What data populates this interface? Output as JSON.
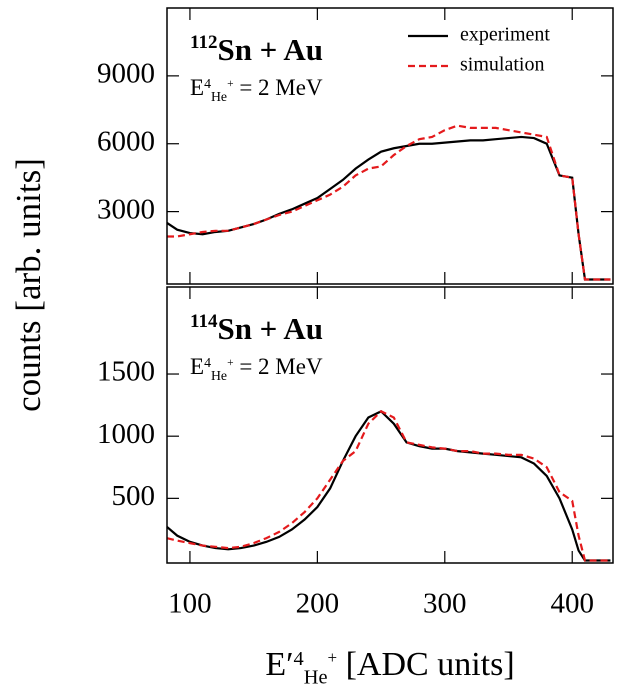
{
  "chart_data": [
    {
      "type": "line",
      "ylabel": "counts [arb. units]",
      "annotation": {
        "mass": "112",
        "text": "Sn + Au"
      },
      "energy_label": [
        "E",
        "4",
        "He",
        "+",
        " = 2 MeV"
      ],
      "legend": "upper right",
      "x": [
        82,
        90,
        100,
        110,
        120,
        130,
        140,
        150,
        160,
        170,
        180,
        190,
        200,
        210,
        220,
        230,
        240,
        250,
        260,
        270,
        280,
        290,
        300,
        310,
        320,
        330,
        340,
        350,
        360,
        370,
        380,
        390,
        400,
        405,
        410,
        420,
        430
      ],
      "xlim": [
        82,
        432
      ],
      "ylim": [
        -200,
        12000
      ],
      "yticks": [
        3000,
        6000,
        9000
      ],
      "series": [
        {
          "name": "experiment",
          "color": "#000000",
          "dash": "solid",
          "values": [
            2500,
            2200,
            2050,
            2000,
            2100,
            2150,
            2300,
            2450,
            2650,
            2900,
            3100,
            3350,
            3600,
            4000,
            4400,
            4900,
            5300,
            5650,
            5800,
            5900,
            6000,
            6000,
            6050,
            6100,
            6150,
            6150,
            6200,
            6250,
            6300,
            6250,
            6000,
            4600,
            4500,
            2000,
            0,
            0,
            0
          ]
        },
        {
          "name": "simulation",
          "color": "#e41a1c",
          "dash": "dashed",
          "values": [
            1900,
            1900,
            2000,
            2100,
            2150,
            2150,
            2300,
            2450,
            2650,
            2850,
            3000,
            3250,
            3500,
            3750,
            4100,
            4600,
            4900,
            5000,
            5500,
            5900,
            6200,
            6300,
            6600,
            6800,
            6700,
            6700,
            6700,
            6600,
            6500,
            6400,
            6300,
            4600,
            4500,
            2000,
            0,
            0,
            0
          ]
        }
      ]
    },
    {
      "type": "line",
      "annotation": {
        "mass": "114",
        "text": "Sn + Au"
      },
      "energy_label": [
        "E",
        "4",
        "He",
        "+",
        " = 2 MeV"
      ],
      "xlabel": [
        "E′",
        "4",
        "He",
        "+",
        " [ADC units]"
      ],
      "x": [
        82,
        90,
        100,
        110,
        120,
        130,
        140,
        150,
        160,
        170,
        180,
        190,
        200,
        210,
        220,
        230,
        240,
        250,
        260,
        270,
        280,
        290,
        300,
        310,
        320,
        330,
        340,
        350,
        360,
        370,
        380,
        390,
        400,
        405,
        410,
        420,
        430
      ],
      "xlim": [
        82,
        432
      ],
      "xticks": [
        100,
        200,
        300,
        400
      ],
      "ylim": [
        -20,
        2200
      ],
      "yticks": [
        500,
        1000,
        1500
      ],
      "series": [
        {
          "name": "experiment",
          "color": "#000000",
          "dash": "solid",
          "values": [
            270,
            200,
            150,
            120,
            100,
            90,
            100,
            120,
            150,
            190,
            250,
            330,
            430,
            580,
            800,
            1000,
            1150,
            1200,
            1100,
            950,
            920,
            900,
            900,
            880,
            870,
            860,
            850,
            840,
            830,
            780,
            680,
            500,
            250,
            80,
            0,
            0,
            0
          ]
        },
        {
          "name": "simulation",
          "color": "#e41a1c",
          "dash": "dashed",
          "values": [
            180,
            160,
            140,
            120,
            110,
            100,
            110,
            140,
            180,
            230,
            300,
            390,
            500,
            650,
            800,
            880,
            1100,
            1200,
            1150,
            950,
            930,
            910,
            900,
            880,
            880,
            860,
            860,
            850,
            850,
            820,
            750,
            550,
            480,
            200,
            0,
            0,
            0
          ]
        }
      ]
    }
  ]
}
